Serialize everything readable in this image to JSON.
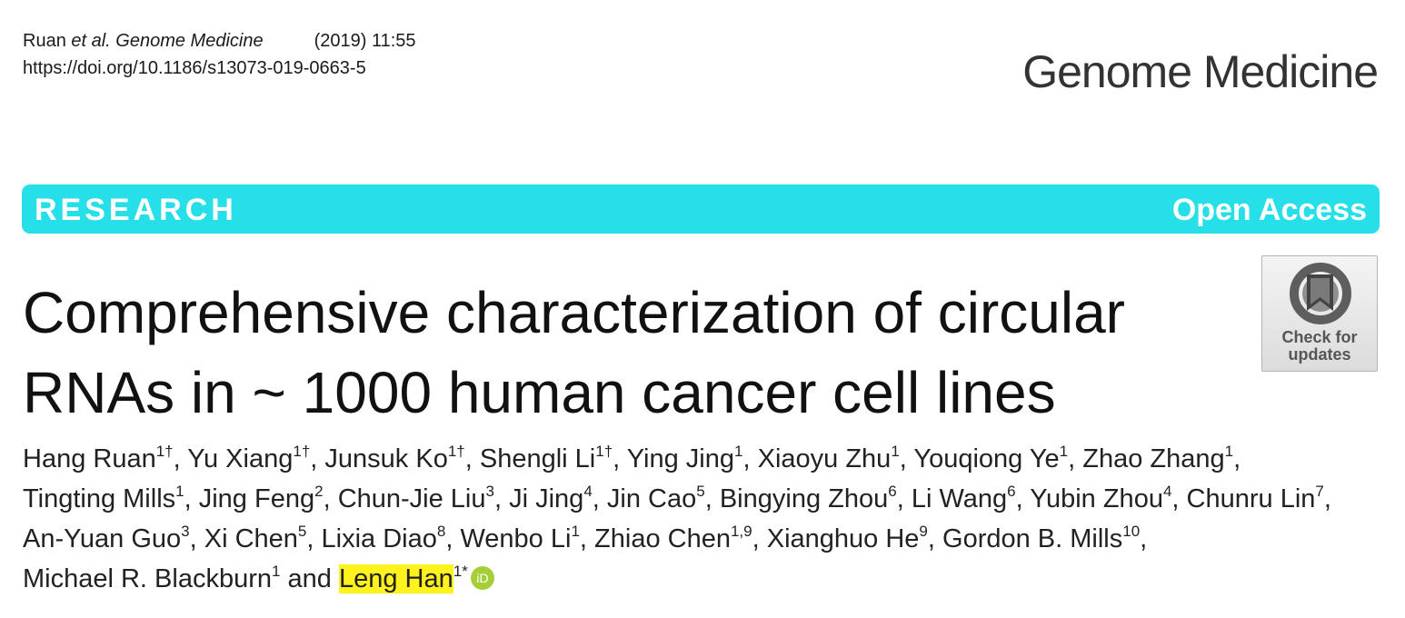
{
  "header": {
    "citation_author": "Ruan",
    "citation_etal": "et al. Genome Medicine",
    "citation_year_volume": "(2019) 11:55",
    "doi": "https://doi.org/10.1186/s13073-019-0663-5",
    "journal_name": "Genome Medicine"
  },
  "banner": {
    "article_type": "RESEARCH",
    "access": "Open Access",
    "color": "#26dfe8"
  },
  "title": {
    "line1": "Comprehensive characterization of circular",
    "line2": "RNAs in ~ 1000 human cancer cell lines"
  },
  "check_for_updates": {
    "line1": "Check for",
    "line2": "updates",
    "icon": "bookmark-ring-icon"
  },
  "authors": [
    {
      "name": "Hang Ruan",
      "sup": "1†"
    },
    {
      "name": "Yu Xiang",
      "sup": "1†"
    },
    {
      "name": "Junsuk Ko",
      "sup": "1†"
    },
    {
      "name": "Shengli Li",
      "sup": "1†"
    },
    {
      "name": "Ying Jing",
      "sup": "1"
    },
    {
      "name": "Xiaoyu Zhu",
      "sup": "1"
    },
    {
      "name": "Youqiong Ye",
      "sup": "1"
    },
    {
      "name": "Zhao Zhang",
      "sup": "1"
    },
    {
      "name": "Tingting Mills",
      "sup": "1"
    },
    {
      "name": "Jing Feng",
      "sup": "2"
    },
    {
      "name": "Chun-Jie Liu",
      "sup": "3"
    },
    {
      "name": "Ji Jing",
      "sup": "4"
    },
    {
      "name": "Jin Cao",
      "sup": "5"
    },
    {
      "name": "Bingying Zhou",
      "sup": "6"
    },
    {
      "name": "Li Wang",
      "sup": "6"
    },
    {
      "name": "Yubin Zhou",
      "sup": "4"
    },
    {
      "name": "Chunru Lin",
      "sup": "7"
    },
    {
      "name": "An-Yuan Guo",
      "sup": "3"
    },
    {
      "name": "Xi Chen",
      "sup": "5"
    },
    {
      "name": "Lixia Diao",
      "sup": "8"
    },
    {
      "name": "Wenbo Li",
      "sup": "1"
    },
    {
      "name": "Zhiao Chen",
      "sup": "1,9"
    },
    {
      "name": "Xianghuo He",
      "sup": "9"
    },
    {
      "name": "Gordon B. Mills",
      "sup": "10"
    },
    {
      "name": "Michael R. Blackburn",
      "sup": "1"
    },
    {
      "name": "Leng Han",
      "sup": "1*"
    }
  ],
  "authors_conjunction": "and",
  "highlight_color": "#fff21d",
  "orcid_color": "#a6ce39",
  "orcid_label": "iD"
}
